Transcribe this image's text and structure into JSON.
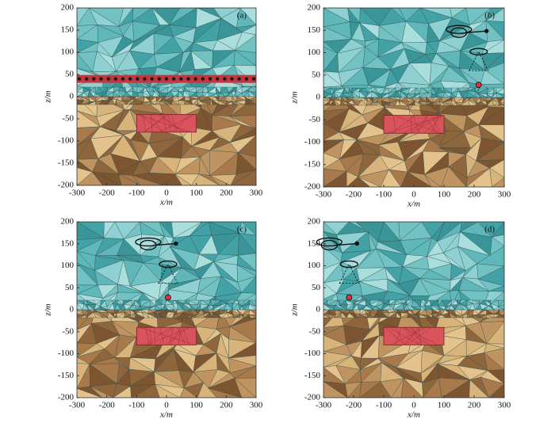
{
  "chart_data": [
    {
      "type": "mesh",
      "label": "(a)",
      "xlabel": "x/m",
      "ylabel": "z/m",
      "xlim": [
        -300,
        300
      ],
      "ylim": [
        -200,
        200
      ],
      "xticks": [
        -300,
        -200,
        -100,
        0,
        100,
        200,
        300
      ],
      "yticks": [
        -200,
        -150,
        -100,
        -50,
        0,
        50,
        100,
        150,
        200
      ],
      "anomaly": {
        "x": [
          -100,
          100
        ],
        "z": [
          -80,
          -40
        ]
      },
      "stations_z": 40
    },
    {
      "type": "mesh",
      "label": "(b)",
      "xlabel": "x/m",
      "ylabel": "z/m",
      "xlim": [
        -300,
        300
      ],
      "ylim": [
        -200,
        200
      ],
      "xticks": [
        -300,
        -200,
        -100,
        0,
        100,
        200,
        300
      ],
      "yticks": [
        -200,
        -150,
        -100,
        -50,
        0,
        50,
        100,
        150,
        200
      ],
      "anomaly": {
        "x": [
          -100,
          100
        ],
        "z": [
          -80,
          -40
        ]
      },
      "source": {
        "x": 215,
        "z": 28
      }
    },
    {
      "type": "mesh",
      "label": "(c)",
      "xlabel": "x/m",
      "ylabel": "z/m",
      "xlim": [
        -300,
        300
      ],
      "ylim": [
        -200,
        200
      ],
      "xticks": [
        -300,
        -200,
        -100,
        0,
        100,
        200,
        300
      ],
      "yticks": [
        -200,
        -150,
        -100,
        -50,
        0,
        50,
        100,
        150,
        200
      ],
      "anomaly": {
        "x": [
          -100,
          100
        ],
        "z": [
          -80,
          -40
        ]
      },
      "source": {
        "x": 5,
        "z": 28
      }
    },
    {
      "type": "mesh",
      "label": "(d)",
      "xlabel": "x/m",
      "ylabel": "z/m",
      "xlim": [
        -300,
        300
      ],
      "ylim": [
        -200,
        200
      ],
      "xticks": [
        -300,
        -200,
        -100,
        0,
        100,
        200,
        300
      ],
      "yticks": [
        -200,
        -150,
        -100,
        -50,
        0,
        50,
        100,
        150,
        200
      ],
      "anomaly": {
        "x": [
          -100,
          100
        ],
        "z": [
          -80,
          -40
        ]
      },
      "source": {
        "x": -215,
        "z": 28
      }
    }
  ]
}
